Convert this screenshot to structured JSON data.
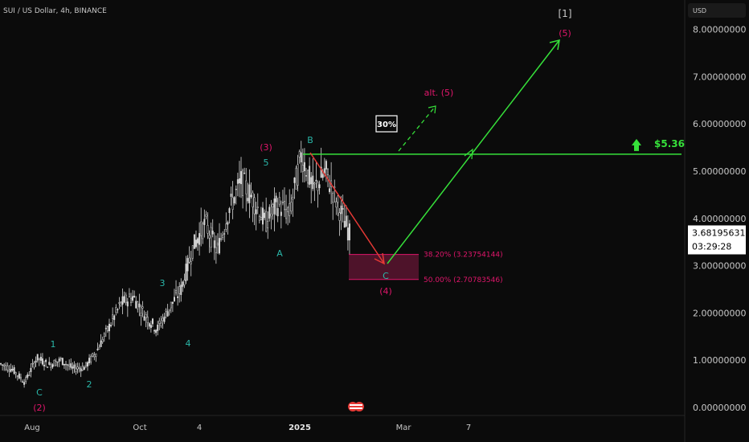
{
  "header": {
    "title": "SUI / US Dollar, 4h, BINANCE"
  },
  "price_axis": {
    "currency": "USD",
    "ticks": [
      "8.00000000",
      "7.00000000",
      "6.00000000",
      "5.00000000",
      "4.00000000",
      "3.00000000",
      "2.00000000",
      "1.00000000",
      "0.00000000"
    ],
    "current_price": "3.68195631",
    "countdown": "03:29:28"
  },
  "time_axis": {
    "ticks": [
      "Aug",
      "Oct",
      "4",
      "2025",
      "Mar",
      "7"
    ]
  },
  "colors": {
    "background": "#0b0b0b",
    "candles": "#d9d9d9",
    "wave_green": "#36e03a",
    "wave_red": "#e53935",
    "label_magenta": "#e0166b",
    "label_cyan": "#2ab7a9",
    "fib_zone": "#5a1530",
    "fib_text": "#e0166b",
    "current_price_bg": "#ffffff",
    "axis_text": "#c8c8c8"
  },
  "chart_data": {
    "type": "line",
    "series": [
      {
        "values": [
          {
            "x": "Jun",
            "y": 0.92
          },
          {
            "x": "Jul",
            "y": 0.8
          },
          {
            "x": "Jul",
            "y": 0.53
          },
          {
            "x": "Jul",
            "y": 1.05
          },
          {
            "x": "Jul",
            "y": 0.9
          },
          {
            "x": "Aug",
            "y": 1.0
          },
          {
            "x": "Aug",
            "y": 0.82
          },
          {
            "x": "Aug",
            "y": 0.85
          },
          {
            "x": "Sep",
            "y": 1.2
          },
          {
            "x": "Sep",
            "y": 1.7
          },
          {
            "x": "Sep",
            "y": 2.2
          },
          {
            "x": "Oct",
            "y": 2.35
          },
          {
            "x": "Oct",
            "y": 1.95
          },
          {
            "x": "Oct",
            "y": 1.65
          },
          {
            "x": "Oct",
            "y": 2.1
          },
          {
            "x": "Nov",
            "y": 2.5
          },
          {
            "x": "Nov",
            "y": 3.4
          },
          {
            "x": "Nov",
            "y": 3.9
          },
          {
            "x": "Nov",
            "y": 3.3
          },
          {
            "x": "Nov",
            "y": 4.2
          },
          {
            "x": "Nov",
            "y": 4.8
          },
          {
            "x": "Dec",
            "y": 4.4
          },
          {
            "x": "Dec",
            "y": 3.9
          },
          {
            "x": "Dec",
            "y": 4.3
          },
          {
            "x": "Dec",
            "y": 4.1
          },
          {
            "x": "Dec",
            "y": 5.35
          },
          {
            "x": "Jan",
            "y": 4.6
          },
          {
            "x": "Jan",
            "y": 5.0
          },
          {
            "x": "Jan",
            "y": 4.3
          },
          {
            "x": "Feb",
            "y": 3.68
          }
        ]
      }
    ],
    "key_level": {
      "value": 5.36,
      "label": "$5.36"
    },
    "fibonacci": [
      {
        "label": "38.20% (3.23754144)",
        "value": 3.23754144
      },
      {
        "label": "50.00% (2.70783546)",
        "value": 2.70783546
      }
    ],
    "probability_label": "30%",
    "wave_labels": {
      "magenta": [
        "(2)",
        "(3)",
        "(4)",
        "(5)",
        "alt. (5)"
      ],
      "cyan": [
        "C",
        "1",
        "2",
        "3",
        "4",
        "5",
        "A",
        "B",
        "C"
      ],
      "white": [
        "[1]"
      ]
    },
    "ylim": [
      0,
      8.3
    ]
  }
}
